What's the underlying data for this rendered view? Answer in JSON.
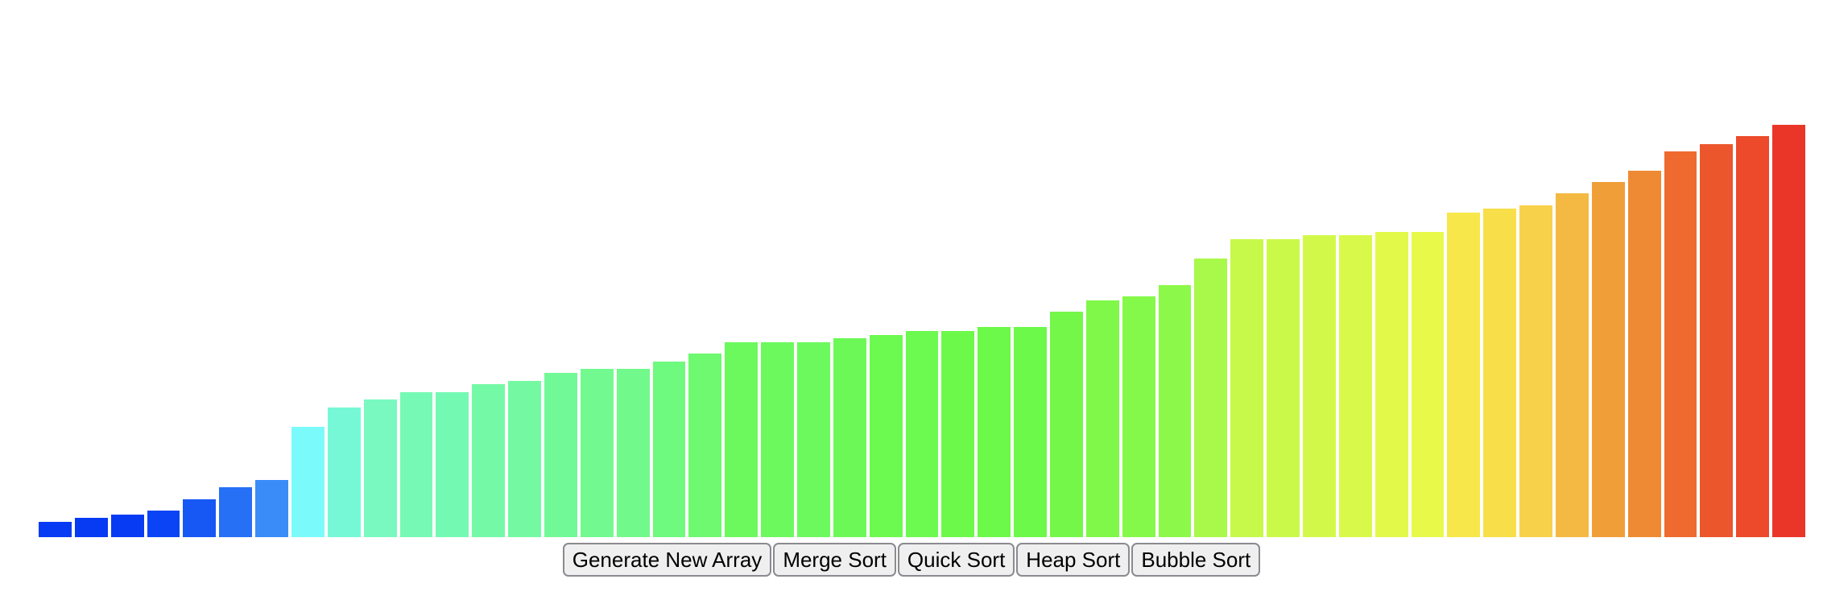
{
  "array": {
    "values": [
      4,
      5,
      6,
      7,
      10,
      13,
      15,
      29,
      34,
      36,
      38,
      38,
      40,
      41,
      43,
      44,
      44,
      46,
      48,
      51,
      51,
      51,
      52,
      53,
      54,
      54,
      55,
      55,
      59,
      62,
      63,
      66,
      73,
      78,
      78,
      79,
      79,
      80,
      80,
      85,
      86,
      87,
      90,
      93,
      96,
      101,
      103,
      105,
      108
    ],
    "colors": [
      "#063bf3",
      "#063bf3",
      "#063bf3",
      "#0a44f4",
      "#1758f5",
      "#2670f6",
      "#3a8cf8",
      "#7bfafb",
      "#76f8d6",
      "#79f9c0",
      "#76f9b4",
      "#74f9b3",
      "#74f9a6",
      "#74f9a2",
      "#72f997",
      "#72f990",
      "#72f98b",
      "#6ef97f",
      "#6ef970",
      "#6cf95e",
      "#6cf95e",
      "#6cf95e",
      "#6cf957",
      "#6cf950",
      "#6cf950",
      "#6cf94a",
      "#6cf94a",
      "#6cf94a",
      "#75f74a",
      "#7ff84a",
      "#85f94a",
      "#8cf94a",
      "#a9f94a",
      "#c6f94a",
      "#cbf94a",
      "#d2f94a",
      "#d8f94a",
      "#e2f94a",
      "#e8f94a",
      "#f8e74a",
      "#f8df4a",
      "#f8d14a",
      "#f4b942",
      "#f09e38",
      "#ef8a34",
      "#ef6a2f",
      "#ec562c",
      "#ec4a2a",
      "#ea3628"
    ]
  },
  "controls": {
    "generate_label": "Generate New Array",
    "merge_label": "Merge Sort",
    "quick_label": "Quick Sort",
    "heap_label": "Heap Sort",
    "bubble_label": "Bubble Sort"
  }
}
